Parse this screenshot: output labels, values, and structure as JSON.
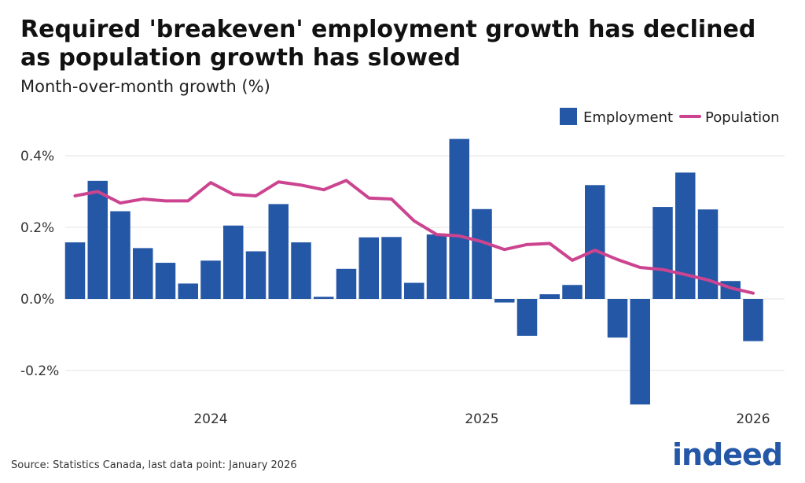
{
  "title": "Required 'breakeven' employment growth has declined as population growth has slowed",
  "subtitle": "Month-over-month growth (%)",
  "source": "Source: Statistics Canada, last data point: January 2026",
  "logo": "indeed",
  "chart_data": {
    "type": "bar",
    "title": "Required 'breakeven' employment growth has declined as population growth has slowed",
    "ylabel": "Month-over-month growth (%)",
    "xlabel": "",
    "ylim": [
      -0.3,
      0.45
    ],
    "yticks": [
      -0.2,
      0.0,
      0.2,
      0.4
    ],
    "ytick_labels": [
      "-0.2%",
      "0.0%",
      "0.2%",
      "0.4%"
    ],
    "xtick_labels": [
      {
        "label": "2024",
        "month": "2024-01"
      },
      {
        "label": "2025",
        "month": "2025-01"
      },
      {
        "label": "2026",
        "month": "2026-01"
      }
    ],
    "grid": true,
    "legend_placement": "top-right",
    "colors": {
      "Employment": "#2557a7",
      "Population": "#cc4490"
    },
    "months": [
      "2023-07",
      "2023-08",
      "2023-09",
      "2023-10",
      "2023-11",
      "2023-12",
      "2024-01",
      "2024-02",
      "2024-03",
      "2024-04",
      "2024-05",
      "2024-06",
      "2024-07",
      "2024-08",
      "2024-09",
      "2024-10",
      "2024-11",
      "2024-12",
      "2025-01",
      "2025-02",
      "2025-03",
      "2025-04",
      "2025-05",
      "2025-06",
      "2025-07",
      "2025-08",
      "2025-09",
      "2025-10",
      "2025-11",
      "2025-12",
      "2026-01"
    ],
    "series": [
      {
        "name": "Employment",
        "type": "bar",
        "values": [
          0.158,
          0.33,
          0.245,
          0.142,
          0.101,
          0.043,
          0.107,
          0.205,
          0.133,
          0.265,
          0.158,
          0.006,
          0.084,
          0.172,
          0.173,
          0.045,
          0.18,
          0.447,
          0.251,
          -0.01,
          -0.103,
          0.013,
          0.039,
          0.318,
          -0.108,
          -0.295,
          0.257,
          0.353,
          0.25,
          0.05,
          -0.118
        ]
      },
      {
        "name": "Population",
        "type": "line",
        "values": [
          0.288,
          0.3,
          0.268,
          0.279,
          0.274,
          0.274,
          0.325,
          0.292,
          0.288,
          0.327,
          0.318,
          0.305,
          0.331,
          0.282,
          0.279,
          0.218,
          0.18,
          0.176,
          0.16,
          0.138,
          0.152,
          0.155,
          0.108,
          0.136,
          0.11,
          0.088,
          0.082,
          0.068,
          0.053,
          0.031,
          0.016
        ]
      }
    ]
  }
}
